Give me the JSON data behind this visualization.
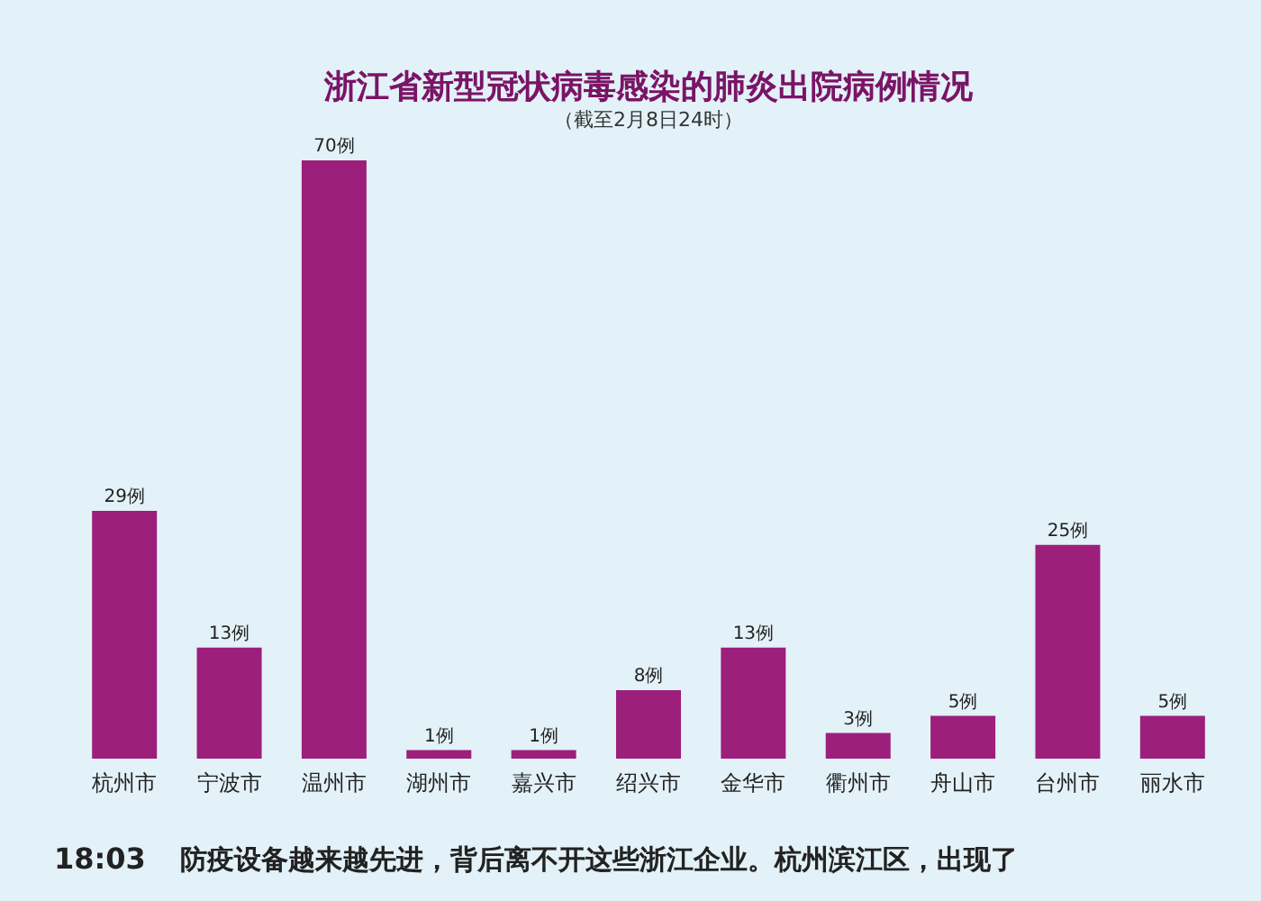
{
  "chart_data": {
    "type": "bar",
    "title": "浙江省新型冠状病毒感染的肺炎出院病例情况",
    "subtitle": "（截至2月8日24时）",
    "categories": [
      "杭州市",
      "宁波市",
      "温州市",
      "湖州市",
      "嘉兴市",
      "绍兴市",
      "金华市",
      "衢州市",
      "舟山市",
      "台州市",
      "丽水市"
    ],
    "values": [
      29,
      13,
      70,
      1,
      1,
      8,
      13,
      3,
      5,
      25,
      5
    ],
    "value_labels": [
      "29例",
      "13例",
      "70例",
      "1例",
      "1例",
      "8例",
      "13例",
      "3例",
      "5例",
      "25例",
      "5例"
    ],
    "color": "#9c1f7c",
    "grid": false,
    "annotations": [
      "18:03",
      "防疫设备越来越先进，背后离不开这些浙江企业。杭州滨江区，出现了"
    ]
  }
}
